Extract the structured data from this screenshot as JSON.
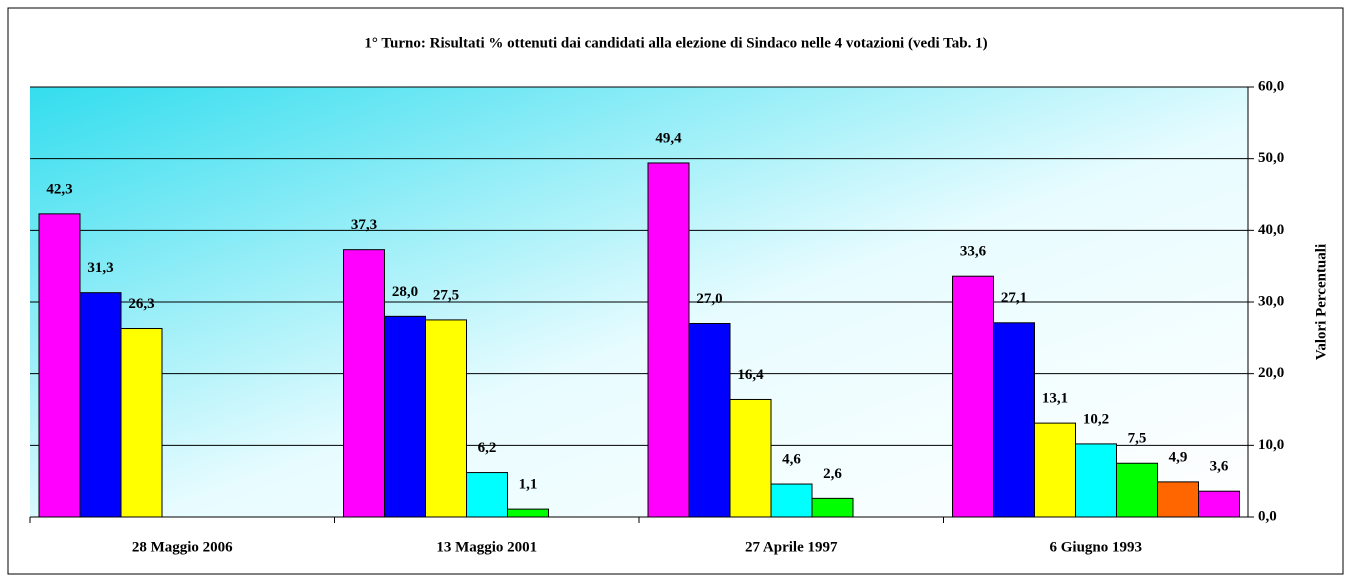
{
  "chart_data": {
    "type": "bar",
    "title": "1° Turno: Risultati % ottenuti dai candidati alla elezione di Sindaco nelle 4 votazioni (vedi Tab. 1)",
    "y_axis_label": "Valori Percentuali",
    "categories": [
      "28 Maggio 2006",
      "13 Maggio 2001",
      "27 Aprile 1997",
      "6 Giugno 1993"
    ],
    "series": [
      {
        "color": "#ff00ff",
        "values": [
          42.3,
          37.3,
          49.4,
          33.6
        ],
        "value_labels": [
          "42,3",
          "37,3",
          "49,4",
          "33,6"
        ]
      },
      {
        "color": "#0000ff",
        "values": [
          31.3,
          28.0,
          27.0,
          27.1
        ],
        "value_labels": [
          "31,3",
          "28,0",
          "27,0",
          "27,1"
        ]
      },
      {
        "color": "#ffff00",
        "values": [
          26.3,
          27.5,
          16.4,
          13.1
        ],
        "value_labels": [
          "26,3",
          "27,5",
          "16,4",
          "13,1"
        ]
      },
      {
        "color": "#00ffff",
        "values": [
          null,
          6.2,
          4.6,
          10.2
        ],
        "value_labels": [
          null,
          "6,2",
          "4,6",
          "10,2"
        ]
      },
      {
        "color": "#00ff00",
        "values": [
          null,
          1.1,
          2.6,
          7.5
        ],
        "value_labels": [
          null,
          "1,1",
          "2,6",
          "7,5"
        ]
      },
      {
        "color": "#ff6600",
        "values": [
          null,
          null,
          null,
          4.9
        ],
        "value_labels": [
          null,
          null,
          null,
          "4,9"
        ]
      },
      {
        "color": "#ff00ff",
        "values": [
          null,
          null,
          null,
          3.6
        ],
        "value_labels": [
          null,
          null,
          null,
          "3,6"
        ]
      }
    ],
    "ylim": [
      0,
      60
    ],
    "yticks": [
      {
        "value": 0,
        "label": "0,0"
      },
      {
        "value": 10,
        "label": "10,0"
      },
      {
        "value": 20,
        "label": "20,0"
      },
      {
        "value": 30,
        "label": "30,0"
      },
      {
        "value": 40,
        "label": "40,0"
      },
      {
        "value": 50,
        "label": "50,0"
      },
      {
        "value": 60,
        "label": "60,0"
      }
    ],
    "grid": true
  }
}
